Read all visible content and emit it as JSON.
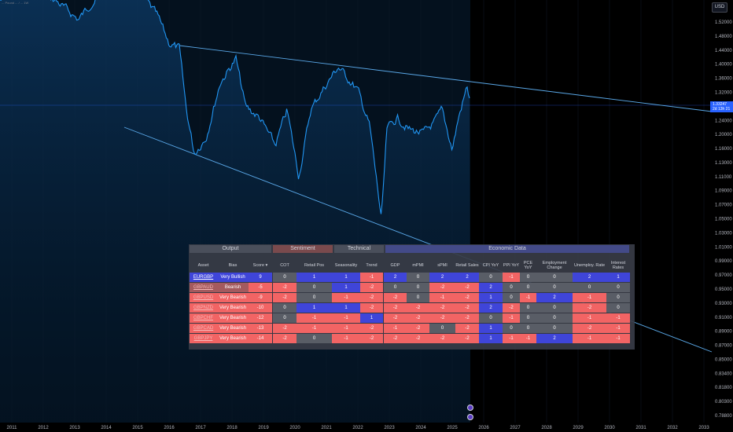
{
  "symbol_caption": "... Pound ... / ... 1W",
  "currency_button": "USD",
  "price_tag": {
    "price": "1.33247",
    "countdown": "2d 13h 21"
  },
  "price_axis": [
    "1.52000",
    "1.48000",
    "1.44000",
    "1.40000",
    "1.36000",
    "1.32000",
    "1.28000",
    "1.24000",
    "1.20000",
    "1.16000",
    "1.13000",
    "1.11000",
    "1.09000",
    "1.07000",
    "1.05000",
    "1.03000",
    "1.01000",
    "0.99000",
    "0.97000",
    "0.95000",
    "0.93000",
    "0.91000",
    "0.89000",
    "0.87000",
    "0.85000",
    "0.83400",
    "0.81800",
    "0.80300",
    "0.78800"
  ],
  "time_axis": [
    "2011",
    "2012",
    "2013",
    "2014",
    "2015",
    "2016",
    "2017",
    "2018",
    "2019",
    "2020",
    "2021",
    "2022",
    "2023",
    "2024",
    "2025",
    "2026",
    "2027",
    "2028",
    "2029",
    "2030",
    "2031",
    "2032",
    "2033"
  ],
  "colors": {
    "line": "#2196f3",
    "bull": "#3f45d9",
    "bear": "#f26464",
    "neutral": "#595d66",
    "panel": "#383c46",
    "trend": "#5aa8e8"
  },
  "table": {
    "groups": [
      "Output",
      "Sentiment",
      "Technical",
      "Economic Data"
    ],
    "headers": [
      "Asset",
      "Bias",
      "Score ▾",
      "COT",
      "Retail Pos",
      "Seasonality",
      "Trend",
      "GDP",
      "mPMI",
      "sPMI",
      "Retail Sales",
      "CPI YoY",
      "PPI YoY",
      "PCE YoY",
      "Employment Change",
      "Unemploy. Rate",
      "Interest Rates"
    ],
    "rows": [
      {
        "asset": "EURGBP",
        "bias": "Very Bullish",
        "score": "9",
        "cot": "0",
        "retail": "1",
        "season": "1",
        "trend": "-1",
        "gdp": "2",
        "mpmi": "0",
        "spmi": "2",
        "rsales": "2",
        "cpi": "0",
        "ppi": "-1",
        "pce": "0",
        "emp": "0",
        "unemp": "2",
        "rates": "1"
      },
      {
        "asset": "GBPAUD",
        "bias": "Bearish",
        "score": "-5",
        "cot": "-2",
        "retail": "0",
        "season": "1",
        "trend": "-2",
        "gdp": "0",
        "mpmi": "0",
        "spmi": "-2",
        "rsales": "-2",
        "cpi": "2",
        "ppi": "0",
        "pce": "0",
        "emp": "0",
        "unemp": "0",
        "rates": "0"
      },
      {
        "asset": "GBPUSD",
        "bias": "Very Bearish",
        "score": "-9",
        "cot": "-2",
        "retail": "0",
        "season": "-1",
        "trend": "-2",
        "gdp": "-2",
        "mpmi": "0",
        "spmi": "-1",
        "rsales": "-2",
        "cpi": "1",
        "ppi": "0",
        "pce": "-1",
        "emp": "2",
        "unemp": "-1",
        "rates": "0"
      },
      {
        "asset": "GBPNZD",
        "bias": "Very Bearish",
        "score": "-10",
        "cot": "0",
        "retail": "1",
        "season": "1",
        "trend": "-2",
        "gdp": "-2",
        "mpmi": "-2",
        "spmi": "-2",
        "rsales": "-2",
        "cpi": "2",
        "ppi": "-2",
        "pce": "0",
        "emp": "0",
        "unemp": "-2",
        "rates": "0"
      },
      {
        "asset": "GBPCHF",
        "bias": "Very Bearish",
        "score": "-12",
        "cot": "0",
        "retail": "-1",
        "season": "-1",
        "trend": "1",
        "gdp": "-2",
        "mpmi": "-2",
        "spmi": "-2",
        "rsales": "-2",
        "cpi": "0",
        "ppi": "-1",
        "pce": "0",
        "emp": "0",
        "unemp": "-1",
        "rates": "-1"
      },
      {
        "asset": "GBPCAD",
        "bias": "Very Bearish",
        "score": "-13",
        "cot": "-2",
        "retail": "-1",
        "season": "-1",
        "trend": "-2",
        "gdp": "-1",
        "mpmi": "-2",
        "spmi": "0",
        "rsales": "-2",
        "cpi": "1",
        "ppi": "0",
        "pce": "0",
        "emp": "0",
        "unemp": "-2",
        "rates": "-1"
      },
      {
        "asset": "GBPJPY",
        "bias": "Very Bearish",
        "score": "-14",
        "cot": "-2",
        "retail": "0",
        "season": "-1",
        "trend": "-2",
        "gdp": "-2",
        "mpmi": "-2",
        "spmi": "-2",
        "rsales": "-2",
        "cpi": "1",
        "ppi": "-1",
        "pce": "-1",
        "emp": "2",
        "unemp": "-1",
        "rates": "-1"
      }
    ]
  }
}
